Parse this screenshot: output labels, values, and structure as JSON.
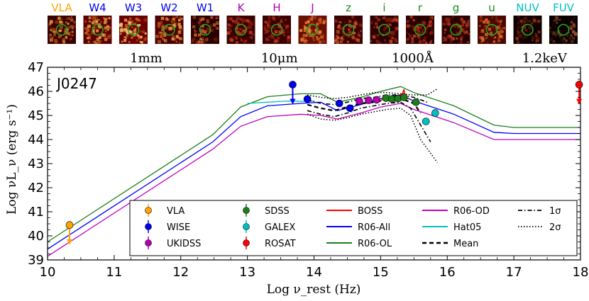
{
  "chart_data": {
    "type": "scatter",
    "title": "J0247",
    "xlabel": "Log ν_rest (Hz)",
    "ylabel": "Log νL_ν (erg s⁻¹)",
    "xlim": [
      10,
      18
    ],
    "ylim": [
      39,
      47
    ],
    "x_ticks": [
      "10",
      "11",
      "12",
      "13",
      "14",
      "15",
      "16",
      "17",
      "18"
    ],
    "y_ticks": [
      "39",
      "40",
      "41",
      "42",
      "43",
      "44",
      "45",
      "46",
      "47"
    ],
    "top_axis_labels": [
      {
        "label": "1mm",
        "x": 11.48
      },
      {
        "label": "10μm",
        "x": 13.48
      },
      {
        "label": "1000Å",
        "x": 15.48
      },
      {
        "label": "1.2keV",
        "x": 17.46
      }
    ],
    "cutouts": [
      {
        "band": "VLA",
        "color": "#ffa500"
      },
      {
        "band": "W4",
        "color": "#0000ee"
      },
      {
        "band": "W3",
        "color": "#0000ee"
      },
      {
        "band": "W2",
        "color": "#0000ee"
      },
      {
        "band": "W1",
        "color": "#0000ee"
      },
      {
        "band": "K",
        "color": "#b300b3"
      },
      {
        "band": "H",
        "color": "#b300b3"
      },
      {
        "band": "J",
        "color": "#b300b3"
      },
      {
        "band": "z",
        "color": "#1a8c1a"
      },
      {
        "band": "i",
        "color": "#1a8c1a"
      },
      {
        "band": "r",
        "color": "#1a8c1a"
      },
      {
        "band": "g",
        "color": "#1a8c1a"
      },
      {
        "band": "u",
        "color": "#1a8c1a"
      },
      {
        "band": "NUV",
        "color": "#00bfbf"
      },
      {
        "band": "FUV",
        "color": "#00bfbf"
      }
    ],
    "templates": [
      {
        "name": "R06-OL",
        "color": "#1a7f1a",
        "x": [
          10,
          12.48,
          12.9,
          13.3,
          13.8,
          14.1,
          14.35,
          14.7,
          15.0,
          15.3,
          15.5,
          16.1,
          16.7,
          17.0,
          18
        ],
        "y": [
          39.75,
          44.2,
          45.35,
          45.78,
          45.9,
          45.9,
          45.55,
          45.75,
          46.0,
          46.2,
          45.95,
          45.4,
          44.6,
          44.5,
          44.5
        ]
      },
      {
        "name": "R06-All",
        "color": "#0000ff",
        "x": [
          10,
          12.48,
          12.9,
          13.3,
          13.8,
          14.1,
          14.35,
          14.7,
          15.0,
          15.3,
          15.5,
          16.1,
          16.7,
          17.0,
          18
        ],
        "y": [
          39.45,
          43.9,
          44.95,
          45.4,
          45.5,
          45.55,
          45.2,
          45.45,
          45.7,
          45.85,
          45.6,
          45.05,
          44.3,
          44.25,
          44.25
        ]
      },
      {
        "name": "R06-OD",
        "color": "#bf00bf",
        "x": [
          10,
          12.48,
          12.9,
          13.3,
          13.8,
          14.1,
          14.35,
          14.7,
          15.0,
          15.3,
          15.5,
          16.1,
          16.7,
          17.0,
          18
        ],
        "y": [
          39.15,
          43.6,
          44.55,
          44.95,
          45.05,
          45.0,
          44.85,
          45.1,
          45.35,
          45.5,
          45.25,
          44.7,
          44.0,
          44.0,
          44.0
        ]
      },
      {
        "name": "Hat05",
        "color": "#00bfbf",
        "x": [
          13.0,
          13.3,
          13.6,
          13.9,
          14.0
        ],
        "y": [
          45.5,
          45.55,
          45.6,
          45.58,
          45.6
        ]
      }
    ],
    "boss_spectrum": {
      "name": "BOSS",
      "color": "#ff0000",
      "x": [
        15.0,
        15.05,
        15.1,
        15.15,
        15.2,
        15.25,
        15.3,
        15.33,
        15.35,
        15.37,
        15.4,
        15.42
      ],
      "y": [
        45.62,
        45.7,
        45.66,
        45.74,
        45.7,
        45.78,
        45.85,
        45.92,
        46.08,
        45.76,
        45.72,
        45.68
      ]
    },
    "composites": [
      {
        "name": "Mean",
        "style": "dash",
        "color": "#000000",
        "x": [
          13.9,
          14.1,
          14.3,
          14.5,
          14.7,
          14.9,
          15.1,
          15.3,
          15.5,
          15.6
        ],
        "y": [
          45.45,
          45.3,
          45.2,
          45.35,
          45.5,
          45.55,
          45.65,
          45.7,
          45.5,
          45.1
        ]
      },
      {
        "name": "1σ upper",
        "style": "dashdot",
        "color": "#000000",
        "x": [
          13.9,
          14.1,
          14.3,
          14.5,
          14.7,
          14.9,
          15.1,
          15.3,
          15.5,
          15.7
        ],
        "y": [
          45.65,
          45.5,
          45.45,
          45.55,
          45.7,
          45.75,
          45.85,
          45.85,
          45.75,
          45.55
        ]
      },
      {
        "name": "1σ lower",
        "style": "dashdot",
        "color": "#000000",
        "x": [
          13.9,
          14.1,
          14.3,
          14.5,
          14.7,
          14.9,
          15.1,
          15.3,
          15.45,
          15.6,
          15.75
        ],
        "y": [
          45.2,
          45.05,
          44.95,
          45.1,
          45.3,
          45.4,
          45.5,
          45.55,
          45.3,
          44.6,
          43.9
        ]
      },
      {
        "name": "2σ upper",
        "style": "dotted",
        "color": "#000000",
        "x": [
          13.9,
          14.1,
          14.3,
          14.5,
          14.7,
          14.9,
          15.1,
          15.3,
          15.5,
          15.7,
          15.85
        ],
        "y": [
          45.85,
          45.75,
          45.7,
          45.75,
          45.85,
          45.95,
          45.95,
          45.9,
          45.85,
          45.85,
          46.1
        ]
      },
      {
        "name": "2σ lower",
        "style": "dotted",
        "color": "#000000",
        "x": [
          13.9,
          14.1,
          14.3,
          14.5,
          14.7,
          14.9,
          15.1,
          15.3,
          15.45,
          15.6,
          15.85
        ],
        "y": [
          45.05,
          44.85,
          44.8,
          44.9,
          45.05,
          45.15,
          45.25,
          45.3,
          45.0,
          44.0,
          43.05
        ]
      }
    ],
    "photometry": [
      {
        "name": "VLA",
        "color": "#ffa500",
        "x": 10.33,
        "y": 40.45,
        "upper_limit": true
      },
      {
        "name": "WISE",
        "color": "#0000ee",
        "x": 13.68,
        "y": 46.28,
        "upper_limit": true
      },
      {
        "name": "WISE",
        "color": "#0000ee",
        "x": 13.9,
        "y": 45.68,
        "upper_limit": false
      },
      {
        "name": "WISE",
        "color": "#0000ee",
        "x": 14.38,
        "y": 45.5,
        "upper_limit": false
      },
      {
        "name": "WISE",
        "color": "#0000ee",
        "x": 14.54,
        "y": 45.3,
        "upper_limit": false
      },
      {
        "name": "UKIDSS",
        "color": "#b300b3",
        "x": 14.68,
        "y": 45.6,
        "upper_limit": false
      },
      {
        "name": "UKIDSS",
        "color": "#b300b3",
        "x": 14.82,
        "y": 45.63,
        "upper_limit": false
      },
      {
        "name": "UKIDSS",
        "color": "#b300b3",
        "x": 14.94,
        "y": 45.65,
        "upper_limit": false
      },
      {
        "name": "SDSS",
        "color": "#1a7f1a",
        "x": 15.08,
        "y": 45.72,
        "upper_limit": false
      },
      {
        "name": "SDSS",
        "color": "#1a7f1a",
        "x": 15.17,
        "y": 45.68,
        "upper_limit": false
      },
      {
        "name": "SDSS",
        "color": "#1a7f1a",
        "x": 15.26,
        "y": 45.7,
        "upper_limit": false
      },
      {
        "name": "SDSS",
        "color": "#1a7f1a",
        "x": 15.35,
        "y": 45.75,
        "upper_limit": false
      },
      {
        "name": "SDSS",
        "color": "#1a7f1a",
        "x": 15.53,
        "y": 45.55,
        "upper_limit": false
      },
      {
        "name": "GALEX",
        "color": "#00bfbf",
        "x": 15.68,
        "y": 44.75,
        "upper_limit": false
      },
      {
        "name": "GALEX",
        "color": "#00bfbf",
        "x": 15.82,
        "y": 45.1,
        "upper_limit": false
      },
      {
        "name": "ROSAT",
        "color": "#ff0000",
        "x": 17.98,
        "y": 46.28,
        "upper_limit": true
      }
    ],
    "legend": [
      {
        "label": "VLA",
        "kind": "marker",
        "color": "#ffa500"
      },
      {
        "label": "WISE",
        "kind": "marker",
        "color": "#0000ee"
      },
      {
        "label": "UKIDSS",
        "kind": "marker",
        "color": "#b300b3"
      },
      {
        "label": "SDSS",
        "kind": "marker",
        "color": "#1a7f1a"
      },
      {
        "label": "GALEX",
        "kind": "marker",
        "color": "#00bfbf"
      },
      {
        "label": "ROSAT",
        "kind": "marker",
        "color": "#ff0000"
      },
      {
        "label": "BOSS",
        "kind": "line",
        "color": "#ff0000"
      },
      {
        "label": "R06-All",
        "kind": "line",
        "color": "#0000ff"
      },
      {
        "label": "R06-OL",
        "kind": "line",
        "color": "#1a7f1a"
      },
      {
        "label": "R06-OD",
        "kind": "line",
        "color": "#bf00bf"
      },
      {
        "label": "Hat05",
        "kind": "line",
        "color": "#00bfbf"
      },
      {
        "label": "Mean",
        "kind": "dash",
        "color": "#000000"
      },
      {
        "label": "1σ",
        "kind": "dashdot",
        "color": "#000000"
      },
      {
        "label": "2σ",
        "kind": "dotted",
        "color": "#000000"
      }
    ],
    "legend_position": "bottom-right",
    "grid": false
  }
}
